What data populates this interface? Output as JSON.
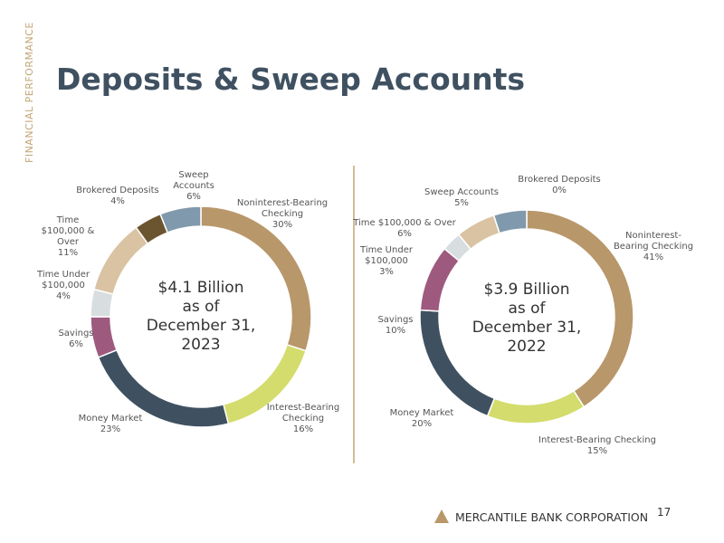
{
  "side_label": "FINANCIAL PERFORMANCE",
  "title": "Deposits & Sweep Accounts",
  "company": "MERCANTILE BANK CORPORATION",
  "page_number": "17",
  "chart_data": [
    {
      "type": "donut",
      "center_text": [
        "$4.1 Billion",
        "as of",
        "December 31,",
        "2023"
      ],
      "categories": [
        "Noninterest-Bearing Checking",
        "Interest-Bearing Checking",
        "Money Market",
        "Savings",
        "Time Under $100,000",
        "Time $100,000 & Over",
        "Brokered Deposits",
        "Sweep Accounts"
      ],
      "values": [
        30,
        16,
        23,
        6,
        4,
        11,
        4,
        6
      ],
      "value_labels": [
        "30%",
        "16%",
        "23%",
        "6%",
        "4%",
        "11%",
        "4%",
        "6%"
      ],
      "colors": [
        "#b8976a",
        "#d3dc6c",
        "#3f5161",
        "#9e5a7e",
        "#d8dde0",
        "#d9c3a3",
        "#6b5430",
        "#8199ac"
      ]
    },
    {
      "type": "donut",
      "center_text": [
        "$3.9 Billion",
        "as of",
        "December 31,",
        "2022"
      ],
      "categories": [
        "Noninterest-Bearing Checking",
        "Interest-Bearing Checking",
        "Money Market",
        "Savings",
        "Time Under $100,000",
        "Time $100,000 & Over",
        "Brokered Deposits",
        "Sweep Accounts"
      ],
      "values": [
        41,
        15,
        20,
        10,
        3,
        6,
        0,
        5
      ],
      "value_labels": [
        "41%",
        "15%",
        "20%",
        "10%",
        "3%",
        "6%",
        "0%",
        "5%"
      ],
      "colors": [
        "#b8976a",
        "#d3dc6c",
        "#3f5161",
        "#9e5a7e",
        "#d8dde0",
        "#d9c3a3",
        "#6b5430",
        "#8199ac"
      ]
    }
  ]
}
